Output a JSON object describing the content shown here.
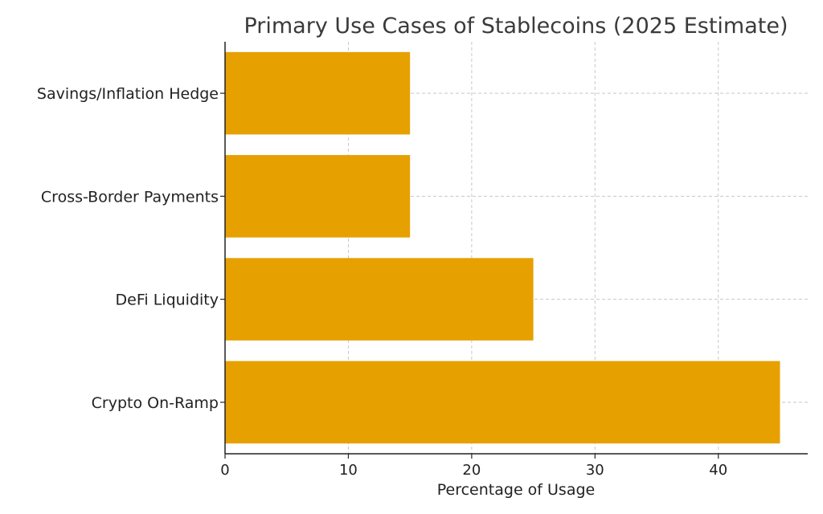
{
  "chart_data": {
    "type": "bar",
    "orientation": "horizontal",
    "title": "Primary Use Cases of Stablecoins (2025 Estimate)",
    "xlabel": "Percentage of Usage",
    "ylabel": "",
    "categories": [
      "Crypto On-Ramp",
      "DeFi Liquidity",
      "Cross-Border Payments",
      "Savings/Inflation Hedge"
    ],
    "values": [
      45,
      25,
      15,
      15
    ],
    "xlim": [
      0,
      47.25
    ],
    "xticks": [
      "0",
      "10",
      "20",
      "30",
      "40"
    ],
    "grid": true,
    "bar_color": "#E6A000"
  }
}
